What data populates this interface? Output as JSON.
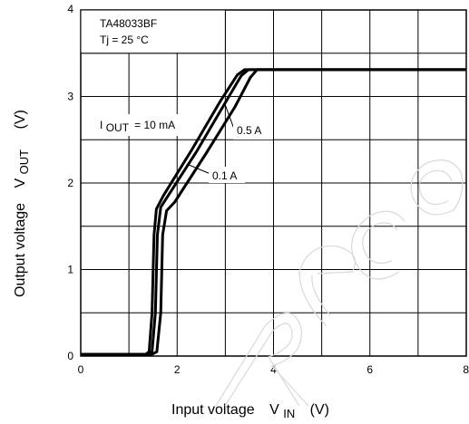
{
  "chart_data": {
    "type": "line",
    "part_number": "TA48033BF",
    "condition": "Tj = 25 °C",
    "xlabel": {
      "main": "Input voltage",
      "symbol": "V",
      "sub": "IN",
      "unit": "(V)"
    },
    "ylabel": {
      "main": "Output voltage",
      "symbol": "V",
      "sub": "OUT",
      "unit": "(V)"
    },
    "xlim": [
      0,
      8
    ],
    "ylim": [
      0,
      4
    ],
    "x_ticks": [
      0,
      2,
      4,
      6,
      8
    ],
    "y_ticks": [
      0,
      1,
      2,
      3,
      4
    ],
    "x_minor": 1,
    "y_minor": 0.5,
    "grid": true,
    "series": [
      {
        "name_main": "I",
        "name_sub": "OUT",
        "name_rest": "= 10 mA",
        "points": [
          [
            0,
            0.02
          ],
          [
            1.35,
            0.02
          ],
          [
            1.42,
            0.05
          ],
          [
            1.48,
            0.5
          ],
          [
            1.52,
            1.4
          ],
          [
            1.57,
            1.7
          ],
          [
            1.72,
            1.86
          ],
          [
            2.3,
            2.38
          ],
          [
            2.9,
            2.95
          ],
          [
            3.25,
            3.25
          ],
          [
            3.4,
            3.31
          ],
          [
            8,
            3.31
          ]
        ]
      },
      {
        "name_main": "",
        "name_sub": "",
        "name_rest": "0.1 A",
        "points": [
          [
            0,
            0.02
          ],
          [
            1.4,
            0.02
          ],
          [
            1.48,
            0.05
          ],
          [
            1.55,
            0.5
          ],
          [
            1.59,
            1.4
          ],
          [
            1.66,
            1.72
          ],
          [
            1.82,
            1.86
          ],
          [
            2.4,
            2.36
          ],
          [
            3.0,
            2.93
          ],
          [
            3.33,
            3.24
          ],
          [
            3.48,
            3.31
          ],
          [
            8,
            3.31
          ]
        ]
      },
      {
        "name_main": "",
        "name_sub": "",
        "name_rest": "0.5 A",
        "points": [
          [
            0,
            0.02
          ],
          [
            1.48,
            0.02
          ],
          [
            1.58,
            0.05
          ],
          [
            1.66,
            0.5
          ],
          [
            1.7,
            1.4
          ],
          [
            1.78,
            1.68
          ],
          [
            1.95,
            1.78
          ],
          [
            2.6,
            2.34
          ],
          [
            3.2,
            2.88
          ],
          [
            3.52,
            3.22
          ],
          [
            3.66,
            3.31
          ],
          [
            8,
            3.31
          ]
        ]
      }
    ]
  }
}
